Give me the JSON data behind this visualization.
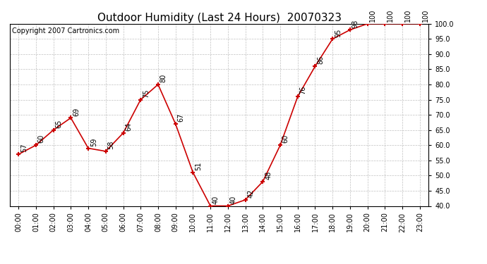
{
  "title": "Outdoor Humidity (Last 24 Hours)  20070323",
  "copyright_text": "Copyright 2007 Cartronics.com",
  "hours": [
    0,
    1,
    2,
    3,
    4,
    5,
    6,
    7,
    8,
    9,
    10,
    11,
    12,
    13,
    14,
    15,
    16,
    17,
    18,
    19,
    20,
    21,
    22,
    23
  ],
  "x_labels": [
    "00:00",
    "01:00",
    "02:00",
    "03:00",
    "04:00",
    "05:00",
    "06:00",
    "07:00",
    "08:00",
    "09:00",
    "10:00",
    "11:00",
    "12:00",
    "13:00",
    "14:00",
    "15:00",
    "16:00",
    "17:00",
    "18:00",
    "19:00",
    "20:00",
    "21:00",
    "22:00",
    "23:00"
  ],
  "values": [
    57,
    60,
    65,
    69,
    59,
    58,
    64,
    75,
    80,
    67,
    51,
    40,
    40,
    42,
    48,
    60,
    76,
    86,
    95,
    98,
    100,
    100,
    100,
    100
  ],
  "line_color": "#cc0000",
  "marker_color": "#cc0000",
  "bg_color": "#ffffff",
  "grid_color": "#c0c0c0",
  "ylim": [
    40.0,
    100.0
  ],
  "yticks": [
    40.0,
    45.0,
    50.0,
    55.0,
    60.0,
    65.0,
    70.0,
    75.0,
    80.0,
    85.0,
    90.0,
    95.0,
    100.0
  ],
  "title_fontsize": 11,
  "annotation_fontsize": 7,
  "copyright_fontsize": 7,
  "xlabel_fontsize": 7,
  "ylabel_fontsize": 7
}
